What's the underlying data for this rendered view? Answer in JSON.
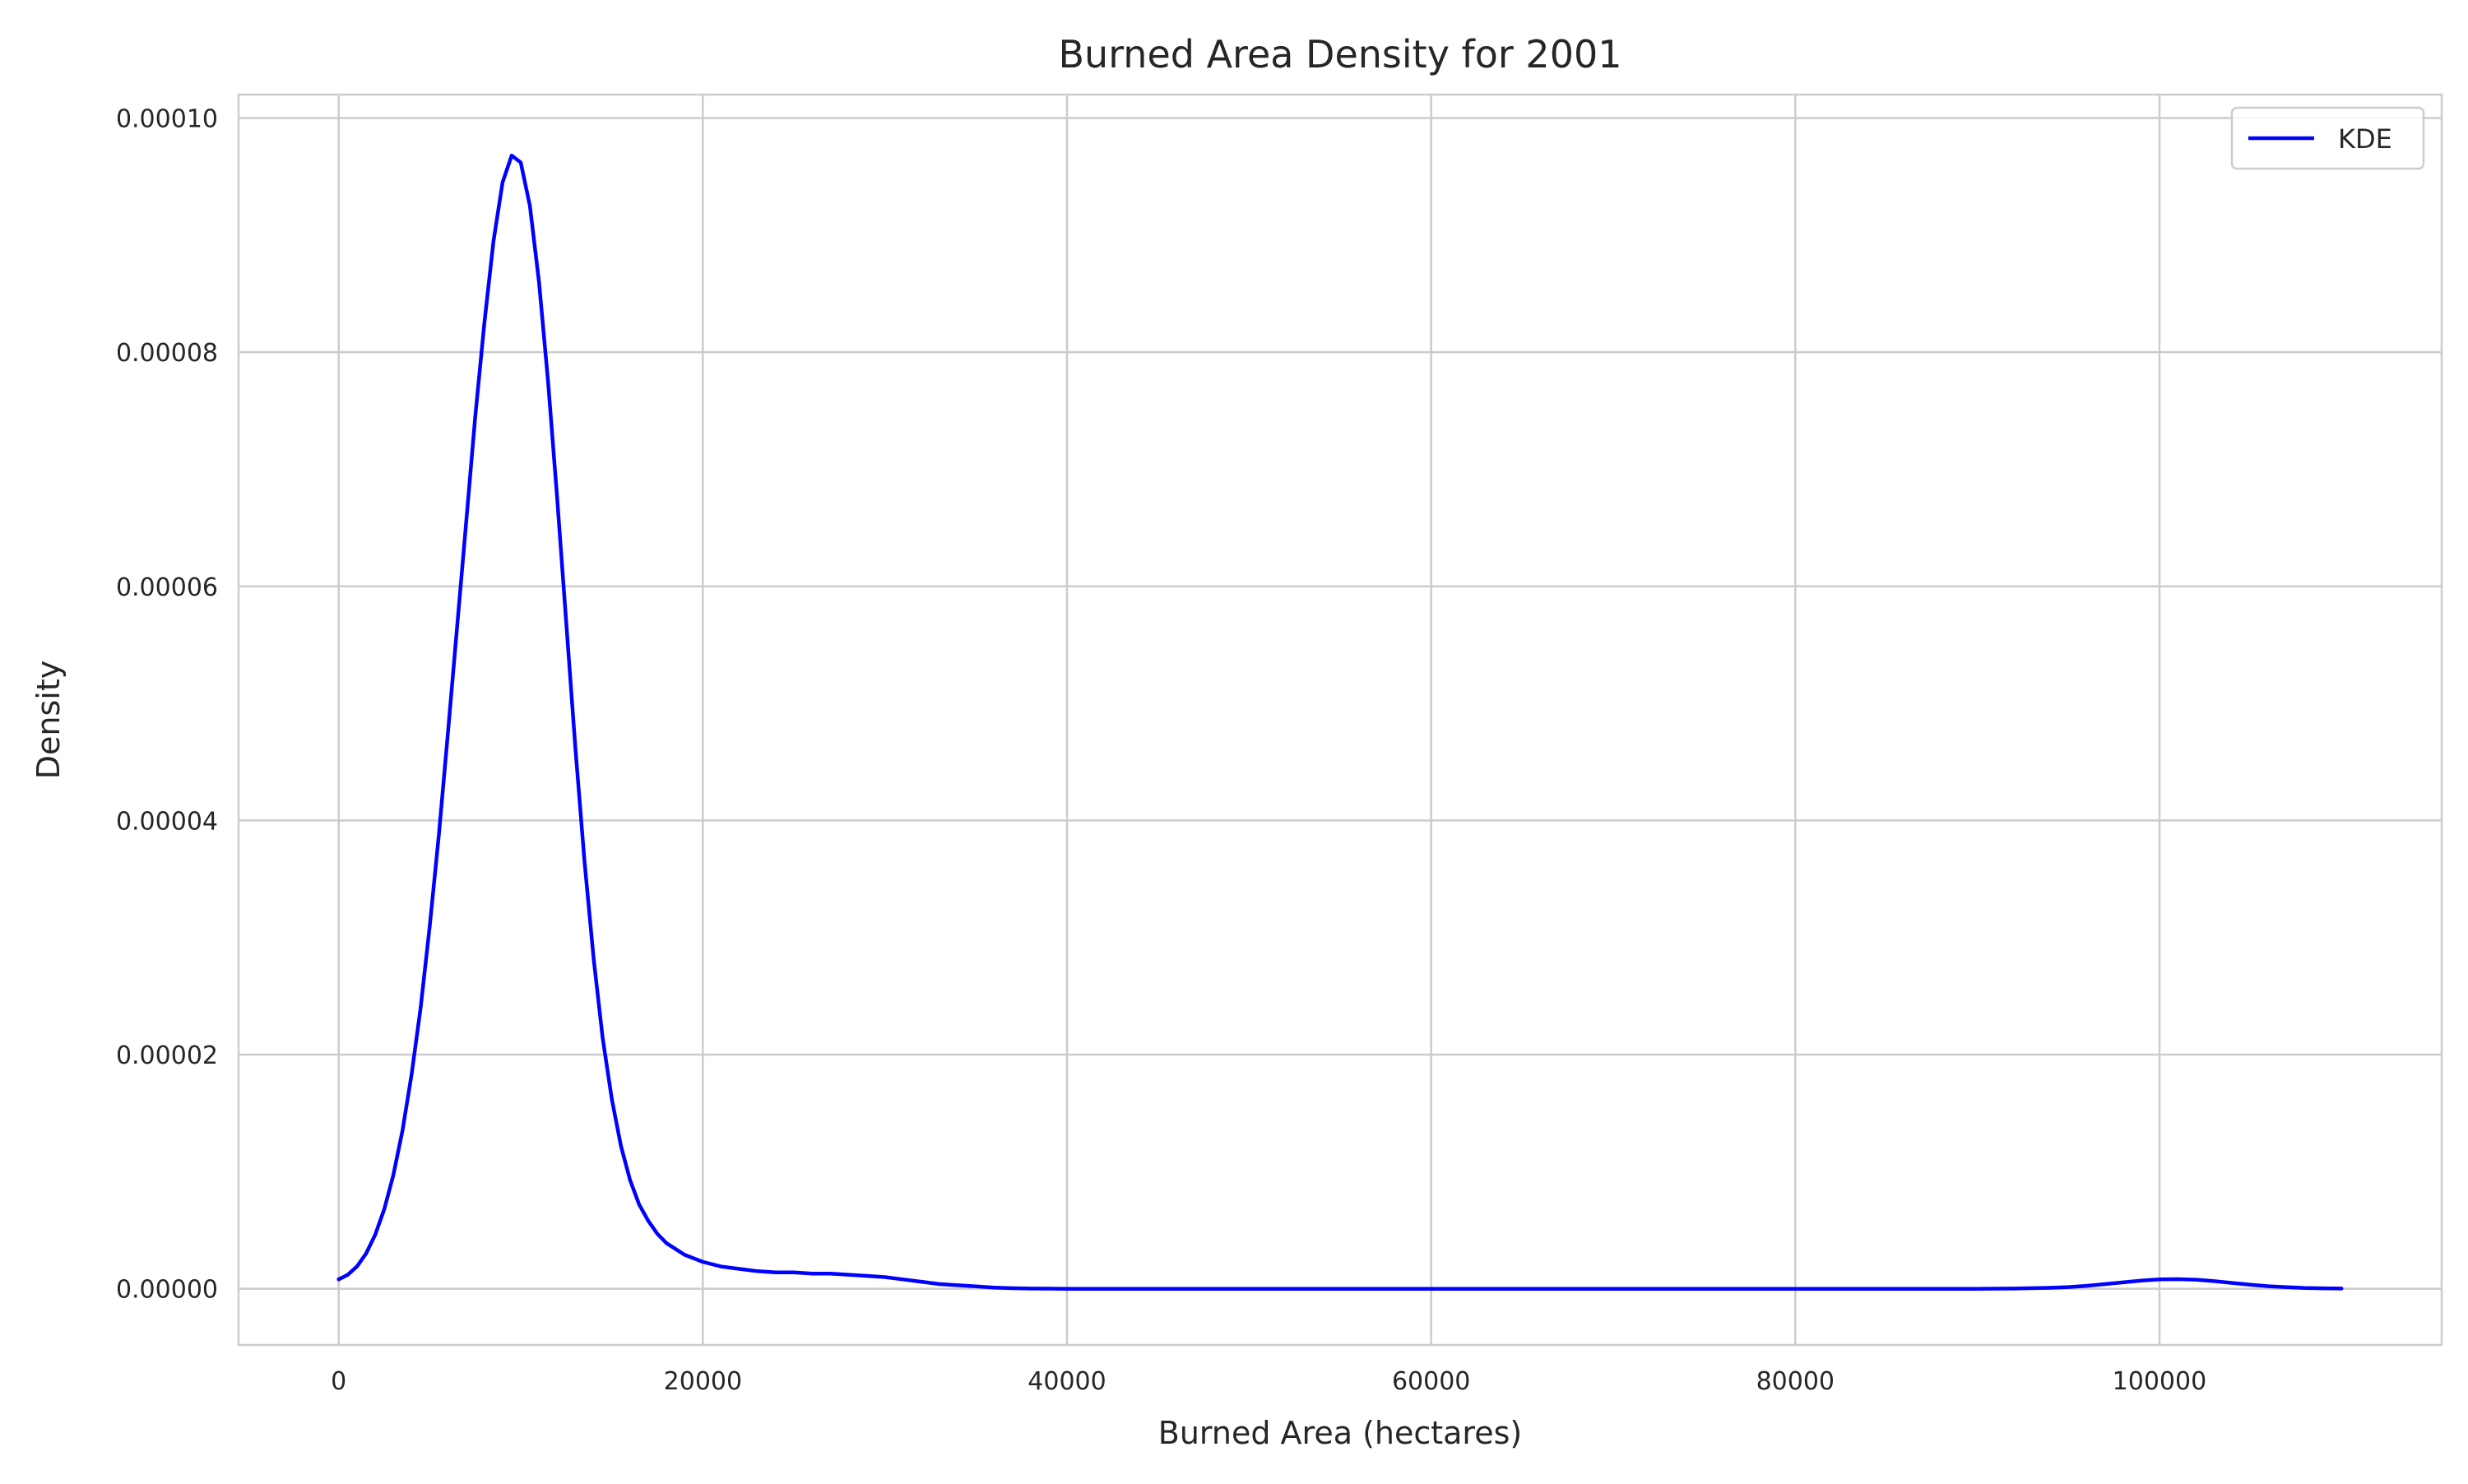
{
  "chart_data": {
    "type": "line",
    "title": "Burned Area Density for 2001",
    "xlabel": "Burned Area (hectares)",
    "ylabel": "Density",
    "xlim": [
      -5500,
      115500
    ],
    "ylim": [
      -4.8e-06,
      0.000102
    ],
    "xticks": [
      0,
      20000,
      40000,
      60000,
      80000,
      100000
    ],
    "xtick_labels": [
      "0",
      "20000",
      "40000",
      "60000",
      "80000",
      "100000"
    ],
    "yticks": [
      0,
      2e-05,
      4e-05,
      6e-05,
      8e-05,
      0.0001
    ],
    "ytick_labels": [
      "0.00000",
      "0.00002",
      "0.00004",
      "0.00006",
      "0.00008",
      "0.00010"
    ],
    "grid": true,
    "legend_position": "top-right",
    "series": [
      {
        "name": "KDE",
        "color": "#0000ff",
        "x": [
          0,
          500,
          1000,
          1500,
          2000,
          2500,
          3000,
          3500,
          4000,
          4500,
          5000,
          5500,
          6000,
          6500,
          7000,
          7500,
          8000,
          8500,
          9000,
          9500,
          10000,
          10500,
          11000,
          11500,
          12000,
          12500,
          13000,
          13500,
          14000,
          14500,
          15000,
          15500,
          16000,
          16500,
          17000,
          17500,
          18000,
          19000,
          20000,
          21000,
          22000,
          23000,
          24000,
          25000,
          26000,
          27000,
          28000,
          29000,
          30000,
          31000,
          32000,
          33000,
          34000,
          35000,
          36000,
          37000,
          38000,
          39000,
          40000,
          45000,
          50000,
          55000,
          60000,
          65000,
          70000,
          75000,
          80000,
          85000,
          90000,
          92000,
          94000,
          95000,
          96000,
          97000,
          98000,
          99000,
          100000,
          101000,
          102000,
          103000,
          104000,
          105000,
          106000,
          107000,
          108000,
          109000,
          110000
        ],
        "y": [
          8e-07,
          1.2e-06,
          1.9e-06,
          3e-06,
          4.6e-06,
          6.8e-06,
          9.7e-06,
          1.35e-05,
          1.83e-05,
          2.4e-05,
          3.1e-05,
          3.88e-05,
          4.75e-05,
          5.65e-05,
          6.55e-05,
          7.45e-05,
          8.25e-05,
          8.95e-05,
          9.45e-05,
          9.68e-05,
          9.62e-05,
          9.25e-05,
          8.6e-05,
          7.75e-05,
          6.75e-05,
          5.68e-05,
          4.62e-05,
          3.65e-05,
          2.82e-05,
          2.14e-05,
          1.62e-05,
          1.22e-05,
          9.3e-06,
          7.2e-06,
          5.8e-06,
          4.7e-06,
          3.9e-06,
          2.9e-06,
          2.3e-06,
          1.9e-06,
          1.7e-06,
          1.5e-06,
          1.4e-06,
          1.4e-06,
          1.3e-06,
          1.3e-06,
          1.2e-06,
          1.1e-06,
          1e-06,
          8e-07,
          6e-07,
          4e-07,
          3e-07,
          2e-07,
          1e-07,
          5e-08,
          2e-08,
          1e-08,
          0,
          0,
          0,
          0,
          0,
          0,
          0,
          0,
          0,
          0,
          0,
          2e-08,
          8e-08,
          1.5e-07,
          2.5e-07,
          4e-07,
          5.5e-07,
          7e-07,
          8e-07,
          8.2e-07,
          7.8e-07,
          6.5e-07,
          5e-07,
          3.5e-07,
          2.2e-07,
          1.3e-07,
          7e-08,
          4e-08,
          2e-08
        ]
      }
    ]
  }
}
